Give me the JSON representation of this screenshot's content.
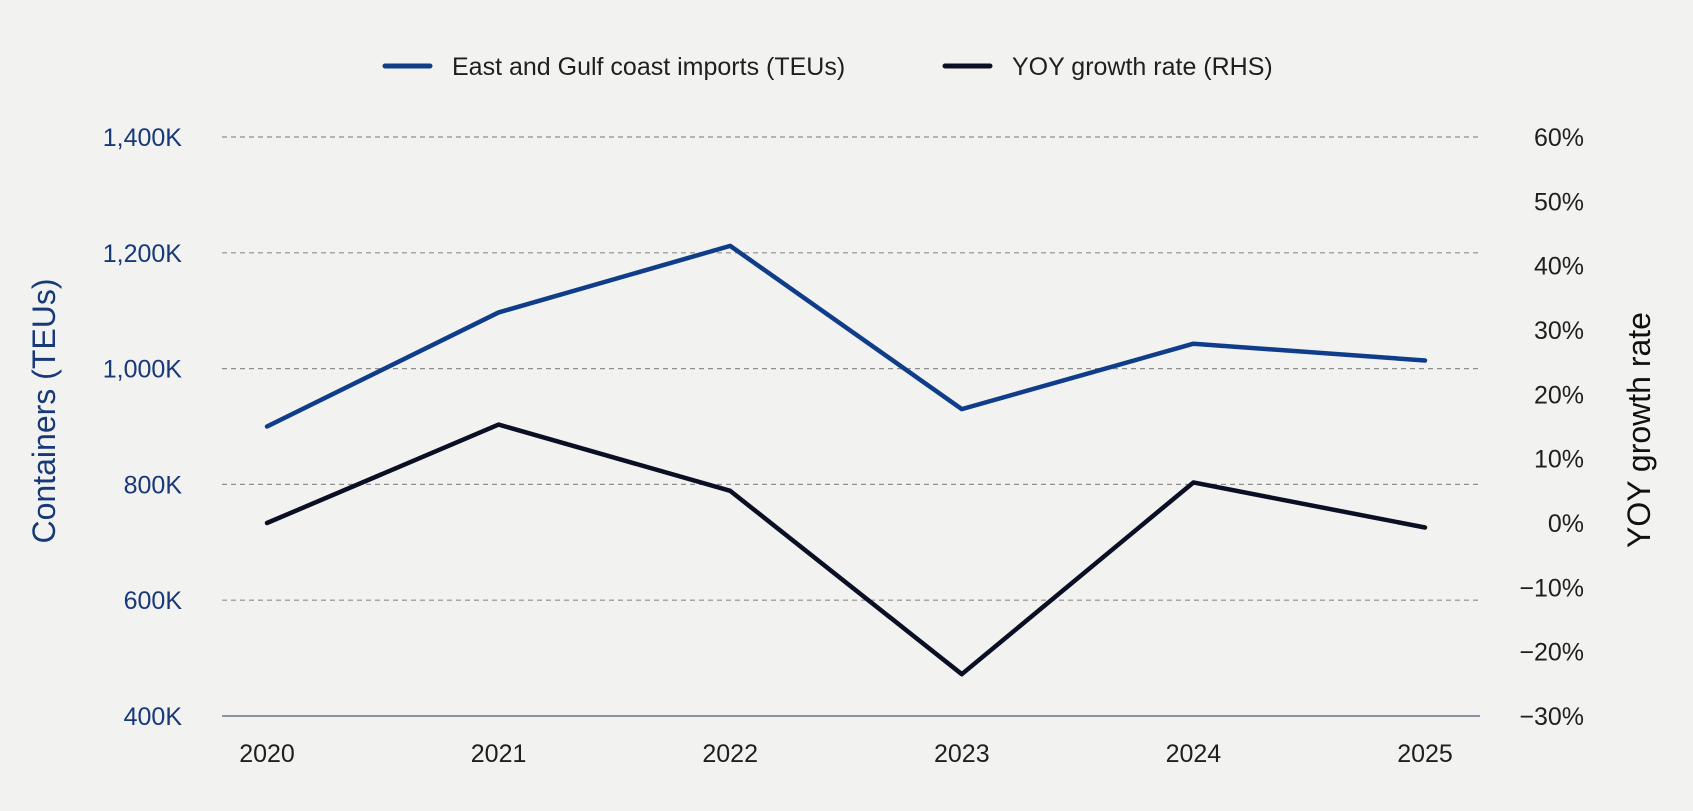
{
  "chart_data": {
    "type": "line",
    "x": [
      "2020",
      "2021",
      "2022",
      "2023",
      "2024",
      "2025"
    ],
    "series": [
      {
        "name": "East and Gulf coast imports (TEUs)",
        "axis": "left",
        "color": "#0f3d8a",
        "values": [
          900,
          1097,
          1212,
          930,
          1043,
          1014
        ]
      },
      {
        "name": "YOY growth rate (RHS)",
        "axis": "right",
        "color": "#0b0f24",
        "values": [
          0,
          15.3,
          5.0,
          -23.5,
          6.3,
          -0.7
        ]
      }
    ],
    "y_left": {
      "label": "Containers (TEUs)",
      "range": [
        400,
        1400
      ],
      "ticks": [
        400,
        600,
        800,
        1000,
        1200,
        1400
      ],
      "tick_labels": [
        "400K",
        "600K",
        "800K",
        "1,000K",
        "1,200K",
        "1,400K"
      ]
    },
    "y_right": {
      "label": "YOY growth rate",
      "range": [
        -30,
        60
      ],
      "ticks": [
        -30,
        -20,
        -10,
        0,
        10,
        20,
        30,
        40,
        50,
        60
      ],
      "tick_labels": [
        "−30%",
        "−20%",
        "−10%",
        "0%",
        "10%",
        "20%",
        "30%",
        "40%",
        "50%",
        "60%"
      ]
    },
    "grid": "horizontal dashed",
    "legend_position": "top-center"
  }
}
